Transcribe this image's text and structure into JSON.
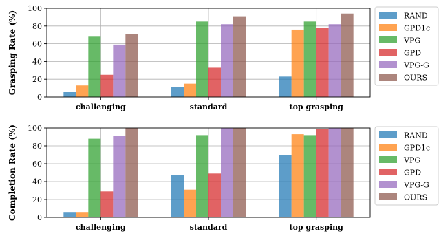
{
  "colors": {
    "series": [
      "#1f77b4",
      "#ff7f0e",
      "#2ca02c",
      "#d62728",
      "#9467bd",
      "#8c564b"
    ]
  },
  "chart_data": [
    {
      "type": "bar",
      "title": "",
      "xlabel": "",
      "ylabel": "Grasping Rate (%)",
      "ylim": [
        0,
        100
      ],
      "yticks": [
        0,
        20,
        40,
        60,
        80,
        100
      ],
      "grid": true,
      "legend_position": "right",
      "categories": [
        "challenging",
        "standard",
        "top grasping"
      ],
      "series": [
        {
          "name": "RAND",
          "values": [
            6,
            11,
            23
          ]
        },
        {
          "name": "GPD1c",
          "values": [
            13,
            15,
            76
          ]
        },
        {
          "name": "VPG",
          "values": [
            68,
            85,
            85
          ]
        },
        {
          "name": "GPD",
          "values": [
            25,
            33,
            78
          ]
        },
        {
          "name": "VPG-G",
          "values": [
            59,
            82,
            82
          ]
        },
        {
          "name": "OURS",
          "values": [
            71,
            91,
            94
          ]
        }
      ]
    },
    {
      "type": "bar",
      "title": "",
      "xlabel": "",
      "ylabel": "Completion Rate (%)",
      "ylim": [
        0,
        100
      ],
      "yticks": [
        0,
        20,
        40,
        60,
        80,
        100
      ],
      "grid": true,
      "legend_position": "right",
      "categories": [
        "challenging",
        "standard",
        "top grasping"
      ],
      "series": [
        {
          "name": "RAND",
          "values": [
            6,
            47,
            70
          ]
        },
        {
          "name": "GPD1c",
          "values": [
            6,
            31,
            93
          ]
        },
        {
          "name": "VPG",
          "values": [
            88,
            92,
            92
          ]
        },
        {
          "name": "GPD",
          "values": [
            29,
            49,
            99
          ]
        },
        {
          "name": "VPG-G",
          "values": [
            91,
            100,
            100
          ]
        },
        {
          "name": "OURS",
          "values": [
            100,
            100,
            100
          ]
        }
      ]
    }
  ]
}
